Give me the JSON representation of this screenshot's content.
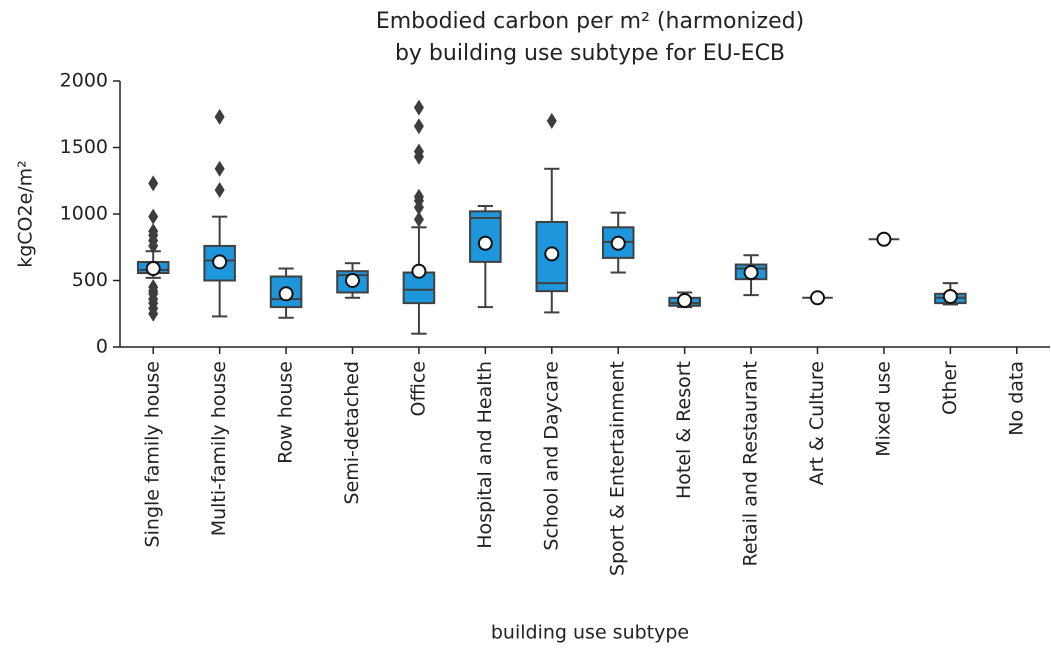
{
  "chart_data": {
    "type": "box",
    "title": [
      "Embodied carbon per m² (harmonized)",
      "by building use subtype for EU-ECB"
    ],
    "x_label": "building use subtype",
    "y_label": "kgCO2e/m²",
    "categories": [
      "Single family house",
      "Multi-family house",
      "Row house",
      "Semi-detached",
      "Office",
      "Hospital and Health",
      "School and Daycare",
      "Sport & Entertainment",
      "Hotel & Resort",
      "Retail and Restaurant",
      "Art & Culture",
      "Mixed use",
      "Other",
      "No data"
    ],
    "whisker_low": [
      520,
      230,
      220,
      370,
      100,
      300,
      260,
      560,
      300,
      390,
      370,
      810,
      320,
      null
    ],
    "q1": [
      556,
      500,
      300,
      410,
      330,
      640,
      420,
      670,
      310,
      510,
      370,
      810,
      330,
      null
    ],
    "median": [
      580,
      650,
      360,
      540,
      430,
      970,
      480,
      790,
      330,
      590,
      370,
      810,
      370,
      null
    ],
    "q3": [
      639,
      760,
      530,
      570,
      560,
      1020,
      940,
      900,
      370,
      620,
      370,
      810,
      400,
      null
    ],
    "whisker_high": [
      720,
      980,
      590,
      630,
      900,
      1060,
      1340,
      1010,
      410,
      690,
      370,
      810,
      480,
      null
    ],
    "mean": [
      590,
      640,
      400,
      500,
      570,
      780,
      700,
      780,
      350,
      560,
      370,
      810,
      380,
      null
    ],
    "outliers": [
      [
        1230,
        980,
        870,
        840,
        800,
        760,
        450,
        420,
        400,
        360,
        330,
        290,
        250
      ],
      [
        1180,
        1340,
        1730
      ],
      [],
      [],
      [
        960,
        1050,
        1100,
        1130,
        1430,
        1470,
        1660,
        1800
      ],
      [],
      [
        1700
      ],
      [],
      [],
      [],
      [],
      [],
      [],
      []
    ],
    "color": "#1e96dc",
    "edge_color": "#404040",
    "ylim": [
      0,
      2000
    ],
    "yticks": [
      0,
      500,
      1000,
      1500,
      2000
    ],
    "grid": false
  }
}
